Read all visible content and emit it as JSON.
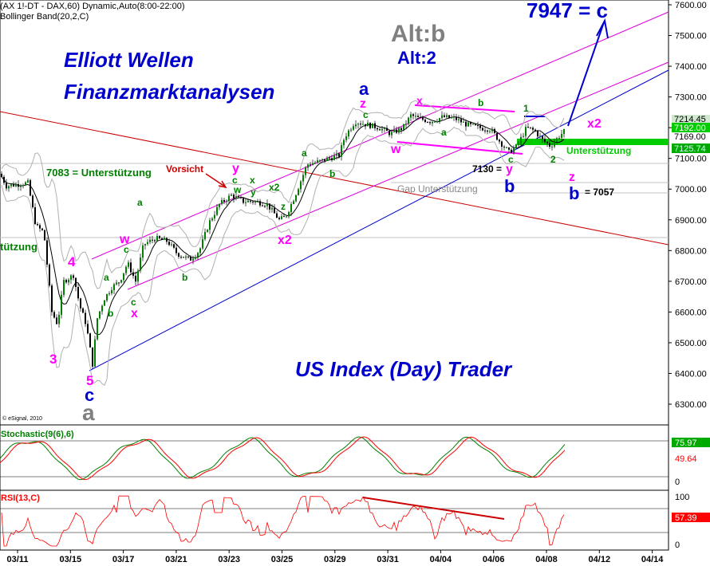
{
  "header": {
    "line1": "(AX 1!-DT - DAX,60) Dynamic,Auto(8:00-22:00)",
    "line2": "Bollinger Band(20,2,C)"
  },
  "watermark": "© eSignal, 2010",
  "colors": {
    "candle": "#008000",
    "bollinger": "#b0b0b0",
    "ma": "#000000",
    "wave_green": "#008000",
    "wave_magenta": "#ff00ff",
    "wave_blue": "#0000ff",
    "wave_gray": "#808080",
    "channel_magenta": "#dd00dd",
    "trend_red": "#cc0000",
    "support_green": "#00cc00",
    "stoch_k": "#008000",
    "stoch_d": "#ff0000",
    "rsi": "#ff0000"
  },
  "annotations": {
    "title1": "Elliott Wellen",
    "title2": "Finanzmarktanalysen",
    "title3": "US Index (Day) Trader",
    "alt_b": "Alt:b",
    "alt_2": "Alt:2",
    "target": "7947 = c",
    "support_7083": "7083 = Unterstützung",
    "support_left": "tützung",
    "vorsicht": "Vorsicht",
    "gap": "Gap Unterstützung",
    "unterstuetzung_right": "Unterstützung",
    "level_7130": "7130 =",
    "level_7057": "= 7057"
  },
  "wave_labels": {
    "w3_mag": "3",
    "w4_mag": "4",
    "w5_mag": "5",
    "wc_blue": "c",
    "wa_gray": "a",
    "a1": "a",
    "b1": "b",
    "c1": "c",
    "x1": "x",
    "w1": "w",
    "a2": "a",
    "b2": "b",
    "c2": "c",
    "y1": "y",
    "c3": "c",
    "w2": "w",
    "x3": "x",
    "y2": "y",
    "x2a": "x2",
    "z1": "z",
    "x2b": "x2",
    "a3": "a",
    "b3": "b",
    "a_blue": "a",
    "z_mag": "z",
    "c4": "c",
    "x_mag": "x",
    "b4": "b",
    "a4": "a",
    "w3": "w",
    "c5": "c",
    "y3": "y",
    "b_blue": "b",
    "one": "1",
    "two": "2",
    "x2c": "x2",
    "z2": "z",
    "b_blue2": "b"
  },
  "price_tags": {
    "p1": "7214.45",
    "p2": "7192.00",
    "p3": "7169.00",
    "p4": "7125.74"
  },
  "stochastic": {
    "label": "Stochastic(9(6),6)",
    "val1": "75.97",
    "val2": "49.64",
    "tick0": "0"
  },
  "rsi": {
    "label": "RSI(13,C)",
    "val": "57.39",
    "tick100": "100",
    "tick0": "0"
  },
  "chart_data": {
    "type": "candlestick",
    "instrument": "DAX",
    "timeframe": "60",
    "y_ticks": [
      6300,
      6400,
      6500,
      6600,
      6700,
      6800,
      6900,
      7000,
      7100,
      7200,
      7300,
      7400,
      7500,
      7600
    ],
    "ylim": [
      6230,
      7640
    ],
    "x_ticks": [
      "03/11",
      "03/15",
      "03/17",
      "03/21",
      "03/23",
      "03/25",
      "03/29",
      "03/31",
      "04/04",
      "04/06",
      "04/08",
      "04/12",
      "04/14"
    ],
    "price_path": [
      [
        0,
        7050
      ],
      [
        8,
        7010
      ],
      [
        20,
        7015
      ],
      [
        35,
        7020
      ],
      [
        45,
        6880
      ],
      [
        55,
        6860
      ],
      [
        65,
        6600
      ],
      [
        72,
        6560
      ],
      [
        80,
        6700
      ],
      [
        92,
        6720
      ],
      [
        100,
        6620
      ],
      [
        108,
        6560
      ],
      [
        116,
        6430
      ],
      [
        122,
        6580
      ],
      [
        130,
        6640
      ],
      [
        140,
        6680
      ],
      [
        150,
        6700
      ],
      [
        160,
        6760
      ],
      [
        170,
        6700
      ],
      [
        180,
        6820
      ],
      [
        195,
        6840
      ],
      [
        210,
        6830
      ],
      [
        222,
        6790
      ],
      [
        238,
        6770
      ],
      [
        250,
        6800
      ],
      [
        262,
        6890
      ],
      [
        275,
        6950
      ],
      [
        290,
        6980
      ],
      [
        305,
        6960
      ],
      [
        320,
        6960
      ],
      [
        335,
        6950
      ],
      [
        350,
        6900
      ],
      [
        358,
        6910
      ],
      [
        370,
        6980
      ],
      [
        385,
        7080
      ],
      [
        400,
        7090
      ],
      [
        412,
        7100
      ],
      [
        425,
        7110
      ],
      [
        432,
        7170
      ],
      [
        445,
        7220
      ],
      [
        460,
        7210
      ],
      [
        475,
        7200
      ],
      [
        490,
        7180
      ],
      [
        505,
        7200
      ],
      [
        515,
        7240
      ],
      [
        525,
        7230
      ],
      [
        540,
        7220
      ],
      [
        555,
        7235
      ],
      [
        570,
        7230
      ],
      [
        585,
        7210
      ],
      [
        600,
        7200
      ],
      [
        615,
        7195
      ],
      [
        628,
        7150
      ],
      [
        638,
        7120
      ],
      [
        648,
        7140
      ],
      [
        660,
        7200
      ],
      [
        670,
        7190
      ],
      [
        680,
        7160
      ],
      [
        690,
        7140
      ],
      [
        700,
        7170
      ],
      [
        708,
        7190
      ]
    ],
    "levels": {
      "support_7083": 7083,
      "level_7130": 7130,
      "level_7057": 7057,
      "target": 7947
    },
    "stoch_ylim": [
      0,
      100
    ],
    "rsi_ylim": [
      0,
      100
    ]
  }
}
